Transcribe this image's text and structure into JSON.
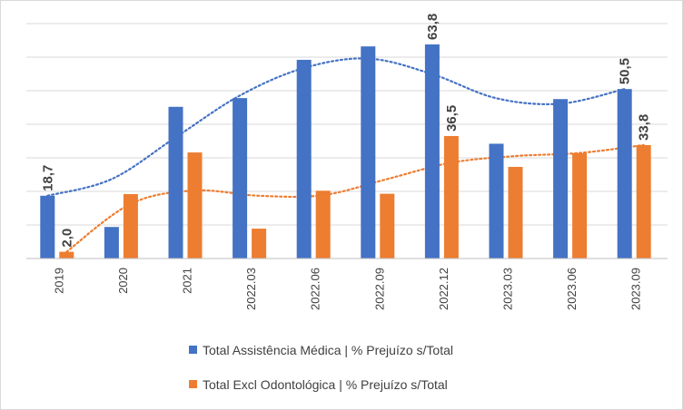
{
  "chart_data": {
    "type": "bar",
    "title": "",
    "xlabel": "",
    "ylabel": "",
    "ylim": [
      0,
      70
    ],
    "grid": true,
    "categories": [
      "2019",
      "2020",
      "2021",
      "2022.03",
      "2022.06",
      "2022.09",
      "2022.12",
      "2023.03",
      "2023.06",
      "2023.09"
    ],
    "legend_position": "bottom",
    "series": [
      {
        "name": "Total Assistência Médica | % Prejuízo s/Total",
        "color": "#4472c4",
        "values": [
          18.7,
          9.4,
          45.2,
          47.8,
          59.2,
          63.2,
          63.8,
          34.2,
          47.5,
          50.5
        ],
        "labels": [
          "18,7",
          "",
          "",
          "",
          "",
          "",
          "63,8",
          "",
          "",
          "50,5"
        ],
        "trendline": "polynomial"
      },
      {
        "name": "Total Excl Odontológica | % Prejuízo s/Total",
        "color": "#ed7d31",
        "values": [
          2.0,
          19.2,
          31.6,
          8.9,
          20.2,
          19.3,
          36.5,
          27.3,
          31.4,
          33.8
        ],
        "labels": [
          "2,0",
          "",
          "",
          "",
          "",
          "",
          "36,5",
          "",
          "",
          "33,8"
        ],
        "trendline": "polynomial"
      }
    ]
  }
}
